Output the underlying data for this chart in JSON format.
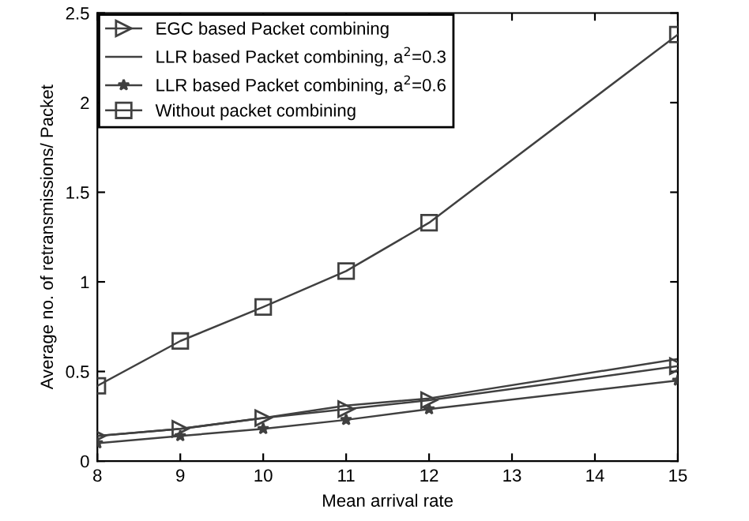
{
  "chart_data": {
    "type": "line",
    "xlabel": "Mean arrival rate",
    "ylabel": "Average no. of retransmissions/ Packet",
    "x": [
      8,
      9,
      10,
      11,
      12,
      15
    ],
    "series": [
      {
        "name": "EGC based Packet combining",
        "color": "#404040",
        "marker": "triangle",
        "values": [
          0.14,
          0.18,
          0.24,
          0.29,
          0.34,
          0.53
        ]
      },
      {
        "name": "LLR based Packet combining, a$^{2}$=0.3",
        "color": "#404040",
        "marker": "none",
        "values": [
          0.14,
          0.18,
          0.24,
          0.31,
          0.35,
          0.57
        ]
      },
      {
        "name": "LLR based Packet combining, a$^{2}$=0.6",
        "color": "#404040",
        "marker": "star",
        "values": [
          0.1,
          0.14,
          0.18,
          0.23,
          0.29,
          0.45
        ]
      },
      {
        "name": "Without packet combining",
        "color": "#404040",
        "marker": "square",
        "values": [
          0.42,
          0.67,
          0.86,
          1.06,
          1.33,
          2.38
        ]
      }
    ],
    "xlim": [
      8,
      15
    ],
    "xticks": [
      8,
      9,
      10,
      11,
      12,
      13,
      14,
      15
    ],
    "ylim": [
      0,
      2.5
    ],
    "yticks": [
      0,
      0.5,
      1,
      1.5,
      2,
      2.5
    ],
    "grid": false,
    "legend": "top left",
    "line_style": "solid"
  }
}
